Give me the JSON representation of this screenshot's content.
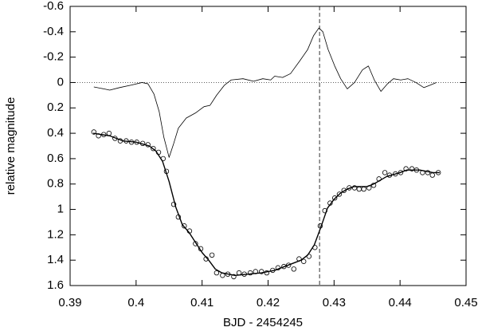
{
  "chart_data": {
    "type": "line",
    "xlabel": "BJD - 2454245",
    "ylabel": "relative magnitude",
    "xlim": [
      0.39,
      0.45
    ],
    "xticks": [
      0.39,
      0.4,
      0.41,
      0.42,
      0.43,
      0.44,
      0.45
    ],
    "ylim": [
      -0.6,
      1.6
    ],
    "yticks": [
      -0.6,
      -0.4,
      -0.2,
      0,
      0.2,
      0.4,
      0.6,
      0.8,
      1,
      1.2,
      1.4,
      1.6
    ],
    "y_reversed": true,
    "grid": false,
    "hlines": [
      0
    ],
    "vlines": [
      0.4278
    ],
    "series": [
      {
        "style": "points",
        "color": "#000000",
        "x": [
          0.3936,
          0.3943,
          0.3951,
          0.3959,
          0.3968,
          0.3976,
          0.3985,
          0.3993,
          0.4001,
          0.401,
          0.4018,
          0.4026,
          0.4034,
          0.4041,
          0.4046,
          0.4057,
          0.4064,
          0.4073,
          0.4081,
          0.409,
          0.4098,
          0.4106,
          0.4115,
          0.4122,
          0.4131,
          0.4139,
          0.4148,
          0.4156,
          0.4164,
          0.4173,
          0.4181,
          0.419,
          0.4198,
          0.4207,
          0.4215,
          0.4224,
          0.4231,
          0.4239,
          0.4247,
          0.4254,
          0.4262,
          0.4271,
          0.4279,
          0.4286,
          0.4294,
          0.4301,
          0.4308,
          0.4315,
          0.4323,
          0.4331,
          0.4338,
          0.4345,
          0.4353,
          0.436,
          0.4368,
          0.4377,
          0.4384,
          0.4393,
          0.4401,
          0.4409,
          0.4418,
          0.4425,
          0.4434,
          0.4442,
          0.4449,
          0.4458
        ],
        "values": [
          0.39,
          0.42,
          0.41,
          0.4,
          0.44,
          0.46,
          0.46,
          0.47,
          0.47,
          0.48,
          0.49,
          0.52,
          0.55,
          0.6,
          0.7,
          0.96,
          1.06,
          1.13,
          1.17,
          1.27,
          1.31,
          1.39,
          1.36,
          1.5,
          1.52,
          1.51,
          1.53,
          1.5,
          1.51,
          1.5,
          1.49,
          1.49,
          1.5,
          1.48,
          1.46,
          1.45,
          1.44,
          1.47,
          1.39,
          1.41,
          1.37,
          1.3,
          1.13,
          1.01,
          0.95,
          0.91,
          0.88,
          0.85,
          0.83,
          0.83,
          0.84,
          0.84,
          0.83,
          0.81,
          0.76,
          0.71,
          0.73,
          0.72,
          0.71,
          0.68,
          0.68,
          0.69,
          0.71,
          0.71,
          0.73,
          0.71
        ]
      },
      {
        "style": "line",
        "color": "#000000",
        "width": 1.4,
        "x": [
          0.3935,
          0.396,
          0.398,
          0.4,
          0.402,
          0.403,
          0.404,
          0.405,
          0.406,
          0.407,
          0.408,
          0.409,
          0.41,
          0.411,
          0.412,
          0.413,
          0.415,
          0.417,
          0.419,
          0.421,
          0.423,
          0.425,
          0.426,
          0.427,
          0.428,
          0.429,
          0.43,
          0.431,
          0.432,
          0.433,
          0.435,
          0.436,
          0.437,
          0.438,
          0.44,
          0.441,
          0.443,
          0.445,
          0.446
        ],
        "values": [
          0.4,
          0.42,
          0.46,
          0.47,
          0.5,
          0.54,
          0.62,
          0.78,
          0.98,
          1.12,
          1.18,
          1.26,
          1.34,
          1.4,
          1.47,
          1.5,
          1.52,
          1.51,
          1.5,
          1.48,
          1.44,
          1.4,
          1.36,
          1.28,
          1.14,
          0.99,
          0.92,
          0.87,
          0.84,
          0.82,
          0.82,
          0.8,
          0.77,
          0.74,
          0.71,
          0.69,
          0.69,
          0.71,
          0.71
        ]
      },
      {
        "style": "line",
        "color": "#000000",
        "width": 0.8,
        "x": [
          0.3936,
          0.3951,
          0.396,
          0.3975,
          0.3993,
          0.4009,
          0.4018,
          0.4027,
          0.4035,
          0.4042,
          0.405,
          0.4057,
          0.4064,
          0.4076,
          0.409,
          0.4103,
          0.4112,
          0.4122,
          0.4134,
          0.4144,
          0.4162,
          0.4178,
          0.4192,
          0.4204,
          0.421,
          0.4222,
          0.4234,
          0.4248,
          0.426,
          0.4269,
          0.4277,
          0.4283,
          0.4291,
          0.4301,
          0.431,
          0.432,
          0.4331,
          0.4343,
          0.4352,
          0.4361,
          0.4371,
          0.4381,
          0.439,
          0.4401,
          0.4412,
          0.4424,
          0.4436,
          0.4446,
          0.4455
        ],
        "values": [
          0.035,
          0.05,
          0.06,
          0.04,
          0.02,
          0,
          0.01,
          0.09,
          0.23,
          0.43,
          0.59,
          0.48,
          0.36,
          0.28,
          0.24,
          0.19,
          0.18,
          0.1,
          0.02,
          -0.02,
          -0.03,
          -0.01,
          -0.03,
          -0.02,
          -0.05,
          -0.04,
          -0.07,
          -0.17,
          -0.26,
          -0.37,
          -0.43,
          -0.4,
          -0.26,
          -0.13,
          -0.03,
          0.05,
          0,
          -0.1,
          -0.13,
          -0.02,
          0.07,
          0.01,
          -0.03,
          -0.02,
          -0.03,
          0,
          0.04,
          0.02,
          0
        ]
      }
    ]
  }
}
